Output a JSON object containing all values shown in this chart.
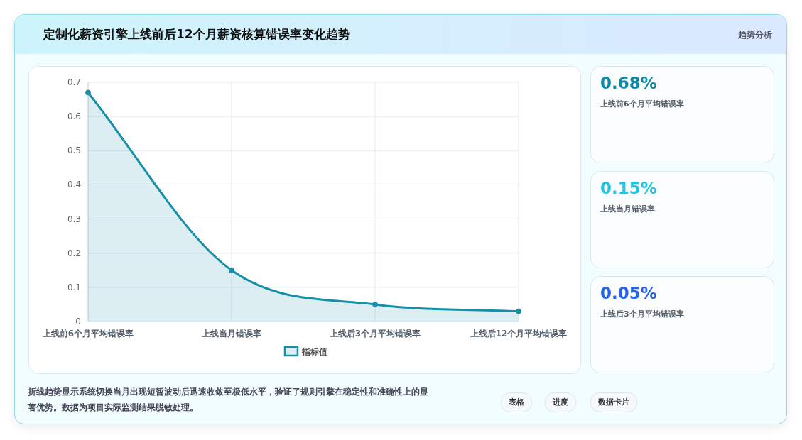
{
  "chart_data": [
    {
      "type": "area",
      "title": "定制化薪资引擎上线前后12个月薪资核算错误率变化趋势",
      "categories": [
        "上线前6个月平均错误率",
        "上线当月错误率",
        "上线后3个月平均错误率",
        "上线后12个月平均错误率"
      ],
      "series": [
        {
          "name": "指标值",
          "color": "#1590a8",
          "values": [
            0.67,
            0.15,
            0.05,
            0.03
          ]
        }
      ],
      "ylim": [
        0,
        0.7
      ],
      "yticks": [
        0,
        0.1,
        0.2,
        0.3,
        0.4,
        0.5,
        0.6,
        0.7
      ],
      "grid": true,
      "legend": "bottom",
      "marker": "circle",
      "annotations": [
        "趋势分析",
        "折线趋势显示系统切换当月出现短暂波动后迅速收敛至极低水平，验证了规则引擎在稳定性和准确性上的显著优势。数据为项目实际监测结果脱敏处理。",
        "表格",
        "进度",
        "数据卡片"
      ]
    },
    {
      "type": "other",
      "annotations": [
        "0.68%",
        "上线前6个月平均错误率",
        "0.15%",
        "上线当月错误率",
        "0.05%",
        "上线后3个月平均错误率"
      ],
      "colors": [
        "#0e8aa5",
        "#22c3e3",
        "#2563eb"
      ]
    }
  ]
}
